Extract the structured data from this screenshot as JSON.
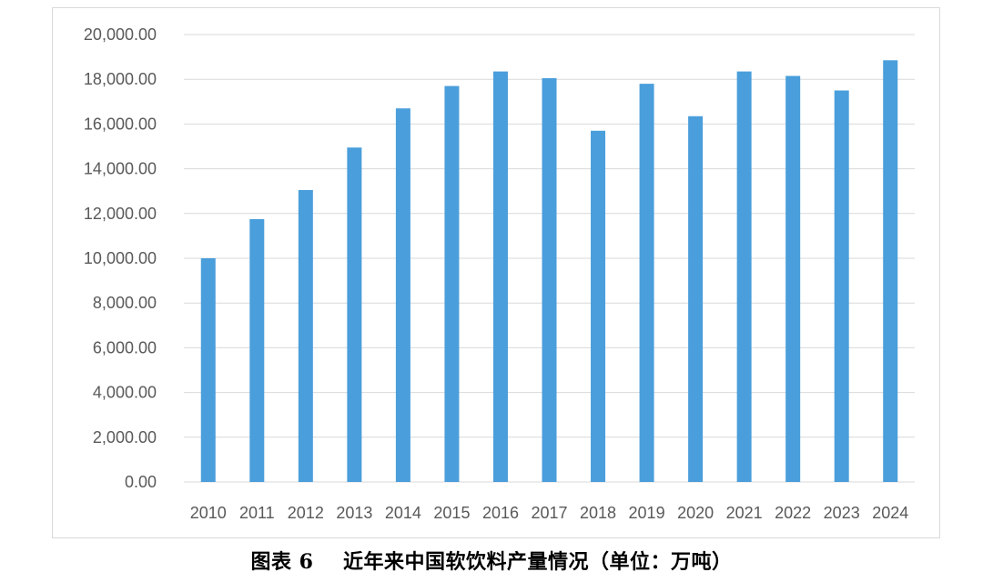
{
  "chart_data": {
    "type": "bar",
    "categories": [
      "2010",
      "2011",
      "2012",
      "2013",
      "2014",
      "2015",
      "2016",
      "2017",
      "2018",
      "2019",
      "2020",
      "2021",
      "2022",
      "2023",
      "2024"
    ],
    "series": [
      {
        "values": [
          10000,
          11750,
          13050,
          14950,
          16700,
          17700,
          18350,
          18050,
          15700,
          17800,
          16350,
          18350,
          18150,
          17500,
          18850
        ],
        "color": "#4a9edb"
      }
    ],
    "ylim": [
      0,
      20000
    ],
    "yticks": [
      0,
      2000,
      4000,
      6000,
      8000,
      10000,
      12000,
      14000,
      16000,
      18000,
      20000
    ],
    "ytick_labels": [
      "0.00",
      "2,000.00",
      "4,000.00",
      "6,000.00",
      "8,000.00",
      "10,000.00",
      "12,000.00",
      "14,000.00",
      "16,000.00",
      "18,000.00",
      "20,000.00"
    ],
    "grid": true,
    "legend": "none"
  },
  "caption": {
    "label": "图表 6",
    "text": "近年来中国软饮料产量情况（单位：万吨）"
  },
  "colors": {
    "bar": "#4a9edb",
    "grid": "#d9d9d9",
    "tick_text": "#595959"
  }
}
